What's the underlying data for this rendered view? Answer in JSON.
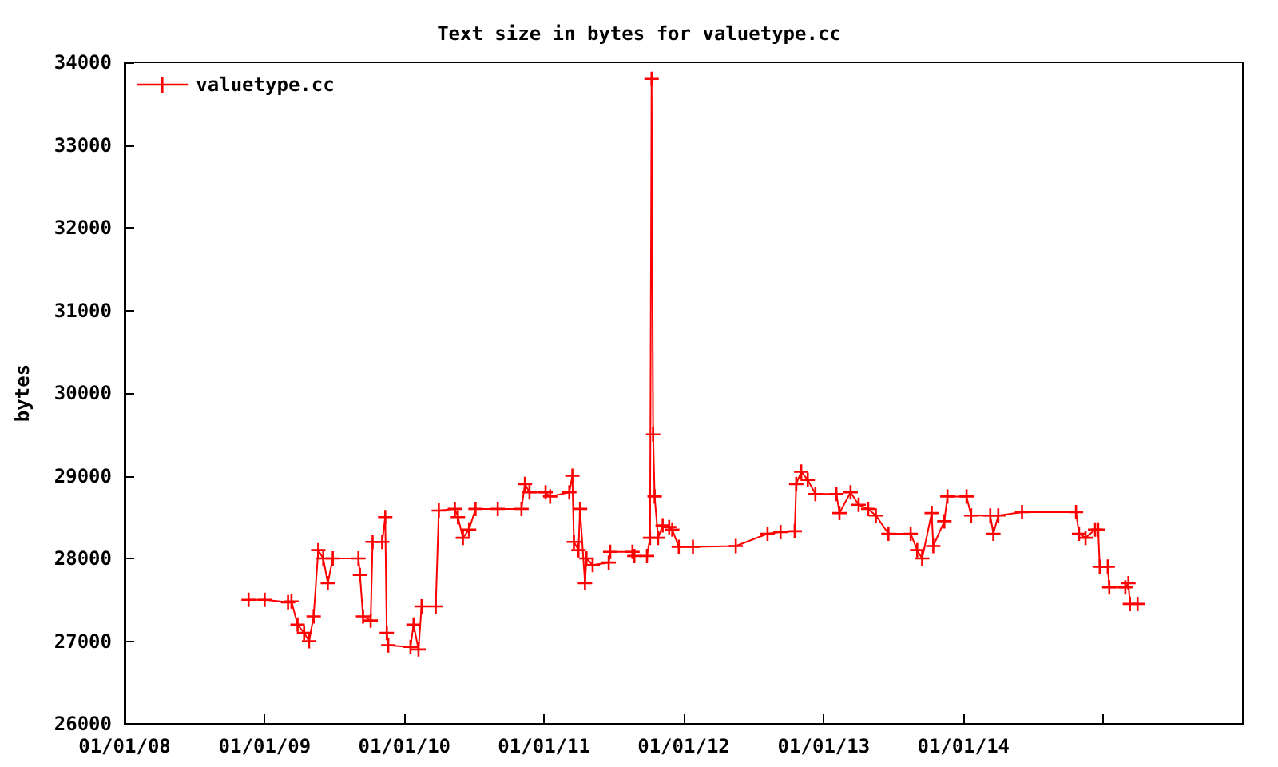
{
  "chart_data": {
    "type": "line",
    "title": "Text size in bytes for valuetype.cc",
    "ylabel": "bytes",
    "x": [
      "2008-11-20",
      "2009-01-01",
      "2009-03-03",
      "2009-03-12",
      "2009-03-28",
      "2009-04-14",
      "2009-04-27",
      "2009-05-09",
      "2009-05-21",
      "2009-06-03",
      "2009-06-15",
      "2009-06-28",
      "2009-09-03",
      "2009-09-07",
      "2009-09-15",
      "2009-10-05",
      "2009-10-10",
      "2009-11-04",
      "2009-11-12",
      "2009-11-16",
      "2009-11-20",
      "2010-01-17",
      "2010-01-25",
      "2010-02-07",
      "2010-02-15",
      "2010-03-24",
      "2010-04-01",
      "2010-05-13",
      "2010-05-21",
      "2010-06-03",
      "2010-06-19",
      "2010-07-06",
      "2010-09-02",
      "2010-11-03",
      "2010-11-12",
      "2010-11-24",
      "2011-01-05",
      "2011-01-17",
      "2011-03-08",
      "2011-03-16",
      "2011-03-20",
      "2011-04-01",
      "2011-04-05",
      "2011-04-18",
      "2011-04-22",
      "2011-05-08",
      "2011-06-19",
      "2011-06-23",
      "2011-08-20",
      "2011-08-25",
      "2011-09-27",
      "2011-10-05",
      "2011-10-09",
      "2011-10-13",
      "2011-10-17",
      "2011-10-26",
      "2011-11-07",
      "2011-11-24",
      "2011-12-02",
      "2011-12-19",
      "2012-01-25",
      "2012-05-16",
      "2012-08-07",
      "2012-09-10",
      "2012-10-17",
      "2012-10-21",
      "2012-11-03",
      "2012-11-20",
      "2012-12-10",
      "2013-02-03",
      "2013-02-11",
      "2013-03-12",
      "2013-04-02",
      "2013-04-27",
      "2013-05-17",
      "2013-06-19",
      "2013-08-16",
      "2013-09-02",
      "2013-09-15",
      "2013-10-10",
      "2013-10-14",
      "2013-11-12",
      "2013-11-20",
      "2014-01-09",
      "2014-01-21",
      "2014-03-12",
      "2014-03-20",
      "2014-04-02",
      "2014-06-03",
      "2014-10-22",
      "2014-10-30",
      "2014-11-16",
      "2014-12-11",
      "2014-12-19",
      "2014-12-23",
      "2015-01-13",
      "2015-01-17",
      "2015-02-28",
      "2015-03-08",
      "2015-03-12",
      "2015-04-01"
    ],
    "series": [
      {
        "name": "valuetype.cc",
        "color": "#ff0000",
        "values": [
          27500,
          27500,
          27470,
          27480,
          27200,
          27100,
          27000,
          27300,
          28100,
          28000,
          27700,
          28000,
          28000,
          27800,
          27300,
          27250,
          28200,
          28200,
          28500,
          27100,
          26950,
          26930,
          27200,
          26900,
          27420,
          27420,
          28580,
          28600,
          28500,
          28250,
          28350,
          28600,
          28600,
          28600,
          28900,
          28800,
          28800,
          28750,
          28800,
          29000,
          28200,
          28100,
          28600,
          27700,
          28000,
          27920,
          27950,
          28080,
          28080,
          28030,
          28030,
          28250,
          33800,
          29500,
          28750,
          28250,
          28400,
          28380,
          28350,
          28140,
          28140,
          28150,
          28300,
          28320,
          28330,
          28900,
          29050,
          28950,
          28780,
          28780,
          28550,
          28800,
          28650,
          28600,
          28520,
          28300,
          28300,
          28100,
          28000,
          28550,
          28150,
          28450,
          28750,
          28750,
          28520,
          28520,
          28300,
          28520,
          28560,
          28560,
          28300,
          28250,
          28350,
          28350,
          27900,
          27900,
          27650,
          27650,
          27700,
          27450,
          27450
        ]
      }
    ],
    "xlim": [
      "2008-01-01",
      "2016-01-01"
    ],
    "xticks": [
      {
        "value": "2008-01-01",
        "label": "01/01/08"
      },
      {
        "value": "2009-01-01",
        "label": "01/01/09"
      },
      {
        "value": "2010-01-01",
        "label": "01/01/10"
      },
      {
        "value": "2011-01-01",
        "label": "01/01/11"
      },
      {
        "value": "2012-01-01",
        "label": "01/01/12"
      },
      {
        "value": "2013-01-01",
        "label": "01/01/13"
      },
      {
        "value": "2014-01-01",
        "label": "01/01/14"
      },
      {
        "value": "2015-01-01",
        "label": null
      }
    ],
    "ylim": [
      26000,
      34000
    ],
    "yticks": [
      26000,
      27000,
      28000,
      29000,
      30000,
      31000,
      32000,
      33000,
      34000
    ],
    "grid": false,
    "legend": "top left",
    "marker": "cross",
    "line_style": "solid"
  }
}
